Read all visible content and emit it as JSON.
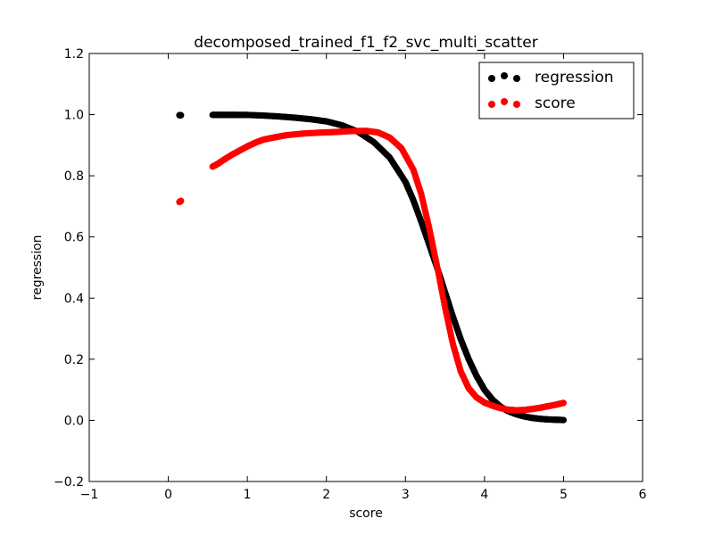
{
  "chart_data": {
    "type": "scatter",
    "title": "decomposed_trained_f1_f2_svc_multi_scatter",
    "xlabel": "score",
    "ylabel": "regression",
    "xlim": [
      -1,
      6
    ],
    "ylim": [
      -0.2,
      1.2
    ],
    "xticks": [
      "−1",
      "0",
      "1",
      "2",
      "3",
      "4",
      "5",
      "6"
    ],
    "yticks": [
      "−0.2",
      "0.0",
      "0.2",
      "0.4",
      "0.6",
      "0.8",
      "1.0",
      "1.2"
    ],
    "grid": false,
    "legend_position": "top-right",
    "series": [
      {
        "name": "regression",
        "color": "#000000",
        "points": [
          [
            0.14,
            0.998
          ],
          [
            0.16,
            0.998
          ],
          [
            0.56,
            0.999
          ],
          [
            0.65,
            0.999
          ],
          [
            0.75,
            0.999
          ],
          [
            0.85,
            0.999
          ],
          [
            1.0,
            0.999
          ],
          [
            1.2,
            0.997
          ],
          [
            1.4,
            0.994
          ],
          [
            1.6,
            0.99
          ],
          [
            1.8,
            0.985
          ],
          [
            2.0,
            0.978
          ],
          [
            2.2,
            0.965
          ],
          [
            2.4,
            0.944
          ],
          [
            2.6,
            0.91
          ],
          [
            2.8,
            0.86
          ],
          [
            3.0,
            0.78
          ],
          [
            3.1,
            0.72
          ],
          [
            3.2,
            0.65
          ],
          [
            3.3,
            0.575
          ],
          [
            3.4,
            0.5
          ],
          [
            3.5,
            0.42
          ],
          [
            3.6,
            0.34
          ],
          [
            3.7,
            0.265
          ],
          [
            3.8,
            0.2
          ],
          [
            3.9,
            0.145
          ],
          [
            4.0,
            0.1
          ],
          [
            4.1,
            0.068
          ],
          [
            4.2,
            0.045
          ],
          [
            4.3,
            0.03
          ],
          [
            4.4,
            0.02
          ],
          [
            4.5,
            0.013
          ],
          [
            4.6,
            0.008
          ],
          [
            4.7,
            0.005
          ],
          [
            4.8,
            0.003
          ],
          [
            4.9,
            0.002
          ],
          [
            5.0,
            0.001
          ]
        ]
      },
      {
        "name": "score",
        "color": "#ff0000",
        "points": [
          [
            0.14,
            0.714
          ],
          [
            0.16,
            0.718
          ],
          [
            0.56,
            0.83
          ],
          [
            0.62,
            0.838
          ],
          [
            0.7,
            0.852
          ],
          [
            0.8,
            0.868
          ],
          [
            0.9,
            0.882
          ],
          [
            1.0,
            0.896
          ],
          [
            1.1,
            0.908
          ],
          [
            1.2,
            0.918
          ],
          [
            1.35,
            0.926
          ],
          [
            1.5,
            0.933
          ],
          [
            1.7,
            0.938
          ],
          [
            1.9,
            0.941
          ],
          [
            2.1,
            0.943
          ],
          [
            2.3,
            0.946
          ],
          [
            2.5,
            0.947
          ],
          [
            2.65,
            0.942
          ],
          [
            2.8,
            0.925
          ],
          [
            2.95,
            0.89
          ],
          [
            3.1,
            0.82
          ],
          [
            3.2,
            0.74
          ],
          [
            3.3,
            0.63
          ],
          [
            3.4,
            0.505
          ],
          [
            3.5,
            0.37
          ],
          [
            3.6,
            0.25
          ],
          [
            3.7,
            0.16
          ],
          [
            3.8,
            0.105
          ],
          [
            3.9,
            0.075
          ],
          [
            4.0,
            0.058
          ],
          [
            4.1,
            0.048
          ],
          [
            4.2,
            0.04
          ],
          [
            4.3,
            0.035
          ],
          [
            4.4,
            0.033
          ],
          [
            4.5,
            0.034
          ],
          [
            4.6,
            0.037
          ],
          [
            4.7,
            0.041
          ],
          [
            4.8,
            0.046
          ],
          [
            4.9,
            0.051
          ],
          [
            5.0,
            0.057
          ]
        ]
      }
    ]
  }
}
